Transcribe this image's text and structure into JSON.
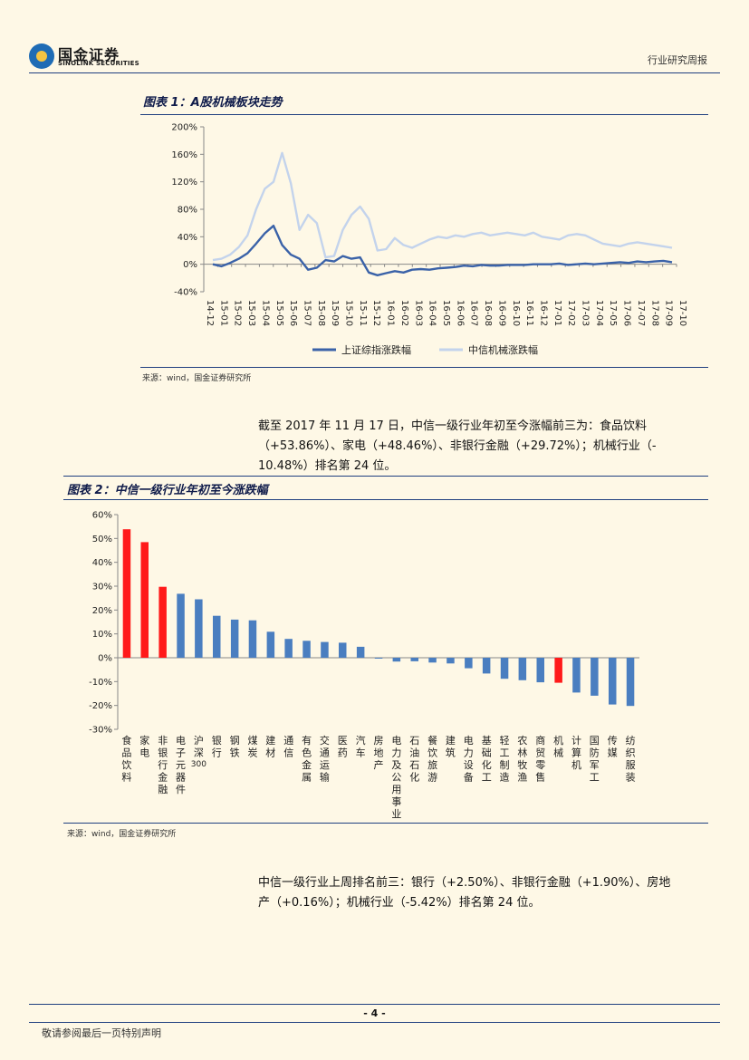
{
  "header": {
    "logo_cn": "国金证券",
    "logo_en": "SINOLINK SECURITIES",
    "report_type": "行业研究周报"
  },
  "figure1": {
    "title": "图表 1：A股机械板块走势",
    "source": "来源：wind，国金证券研究所",
    "chart_data": {
      "type": "line",
      "title": "图表 1：A股机械板块走势",
      "y_ticks": [
        "200%",
        "160%",
        "120%",
        "80%",
        "40%",
        "0%",
        "-40%"
      ],
      "ylim": [
        -40,
        200
      ],
      "x_tick_labels": [
        "14-12",
        "15-01",
        "15-02",
        "15-03",
        "15-04",
        "15-05",
        "15-06",
        "15-07",
        "15-08",
        "15-09",
        "15-10",
        "15-11",
        "15-12",
        "16-01",
        "16-02",
        "16-03",
        "16-04",
        "16-05",
        "16-06",
        "16-07",
        "16-08",
        "16-09",
        "16-10",
        "16-11",
        "16-12",
        "17-01",
        "17-02",
        "17-03",
        "17-04",
        "17-05",
        "17-06",
        "17-07",
        "17-08",
        "17-09",
        "17-10"
      ],
      "series": [
        {
          "name": "上证综指涨跌幅",
          "color": "#3A62A8",
          "values": [
            0,
            -3,
            2,
            8,
            16,
            30,
            45,
            56,
            28,
            14,
            8,
            -8,
            -5,
            6,
            4,
            12,
            8,
            10,
            -12,
            -16,
            -13,
            -10,
            -12,
            -8,
            -7,
            -8,
            -6,
            -5,
            -4,
            -2,
            -3,
            -1,
            -2,
            -2,
            -1,
            -1,
            -1,
            0,
            0,
            0,
            1,
            -1,
            0,
            1,
            0,
            1,
            2,
            3,
            2,
            4,
            3,
            4,
            5,
            3
          ]
        },
        {
          "name": "中信机械涨跌幅",
          "color": "#C3D3EC",
          "values": [
            6,
            8,
            14,
            25,
            42,
            80,
            110,
            120,
            162,
            118,
            50,
            72,
            60,
            10,
            12,
            50,
            72,
            84,
            66,
            20,
            22,
            38,
            28,
            24,
            30,
            36,
            40,
            38,
            42,
            40,
            44,
            46,
            42,
            44,
            46,
            44,
            42,
            46,
            40,
            38,
            36,
            42,
            44,
            42,
            36,
            30,
            28,
            26,
            30,
            32,
            30,
            28,
            26,
            24
          ]
        }
      ]
    }
  },
  "paragraph1": {
    "line1": "截至 2017 年 11 月 17 日，中信一级行业年初至今涨幅前三为：食品饮料",
    "line2": "（+53.86%）、家电（+48.46%）、非银行金融（+29.72%）；机械行业（-",
    "line3": "10.48%）排名第 24 位。"
  },
  "figure2": {
    "title": "图表 2：中信一级行业年初至今涨跌幅",
    "source": "来源：wind，国金证券研究所",
    "chart_data": {
      "type": "bar",
      "title": "图表 2：中信一级行业年初至今涨跌幅",
      "y_ticks": [
        "60%",
        "50%",
        "40%",
        "30%",
        "20%",
        "10%",
        "0%",
        "-10%",
        "-20%",
        "-30%"
      ],
      "ylim": [
        -30,
        60
      ],
      "categories": [
        "食品饮料",
        "家电",
        "非银行金融",
        "电子元器件",
        "沪深300",
        "银行",
        "钢铁",
        "煤炭",
        "建材",
        "通信",
        "有色金属",
        "交通运输",
        "医药",
        "汽车",
        "房地产",
        "电力及公用事业",
        "石油石化",
        "餐饮旅游",
        "建筑",
        "电力设备",
        "基础化工",
        "轻工制造",
        "农林牧渔",
        "商贸零售",
        "机械",
        "计算机",
        "国防军工",
        "传媒",
        "纺织服装"
      ],
      "values": [
        53.86,
        48.46,
        29.72,
        26.8,
        24.5,
        17.6,
        16.0,
        15.7,
        10.9,
        7.9,
        7.1,
        6.6,
        6.3,
        4.6,
        -0.2,
        -1.6,
        -1.5,
        -2.0,
        -2.4,
        -4.4,
        -6.6,
        -8.8,
        -9.4,
        -10.3,
        -10.48,
        -14.6,
        -15.9,
        -19.6,
        -20.2
      ],
      "highlight_color": "#FF1A1A",
      "bar_color": "#4A7EC0",
      "highlight_indices": [
        0,
        1,
        2,
        24
      ]
    }
  },
  "paragraph2": {
    "line1": "中信一级行业上周排名前三：银行（+2.50%）、非银行金融（+1.90%）、房地",
    "line2": "产（+0.16%）；机械行业（-5.42%）排名第 24 位。"
  },
  "footer": {
    "page_number": "- 4 -",
    "disclaimer": "敬请参阅最后一页特别声明"
  }
}
